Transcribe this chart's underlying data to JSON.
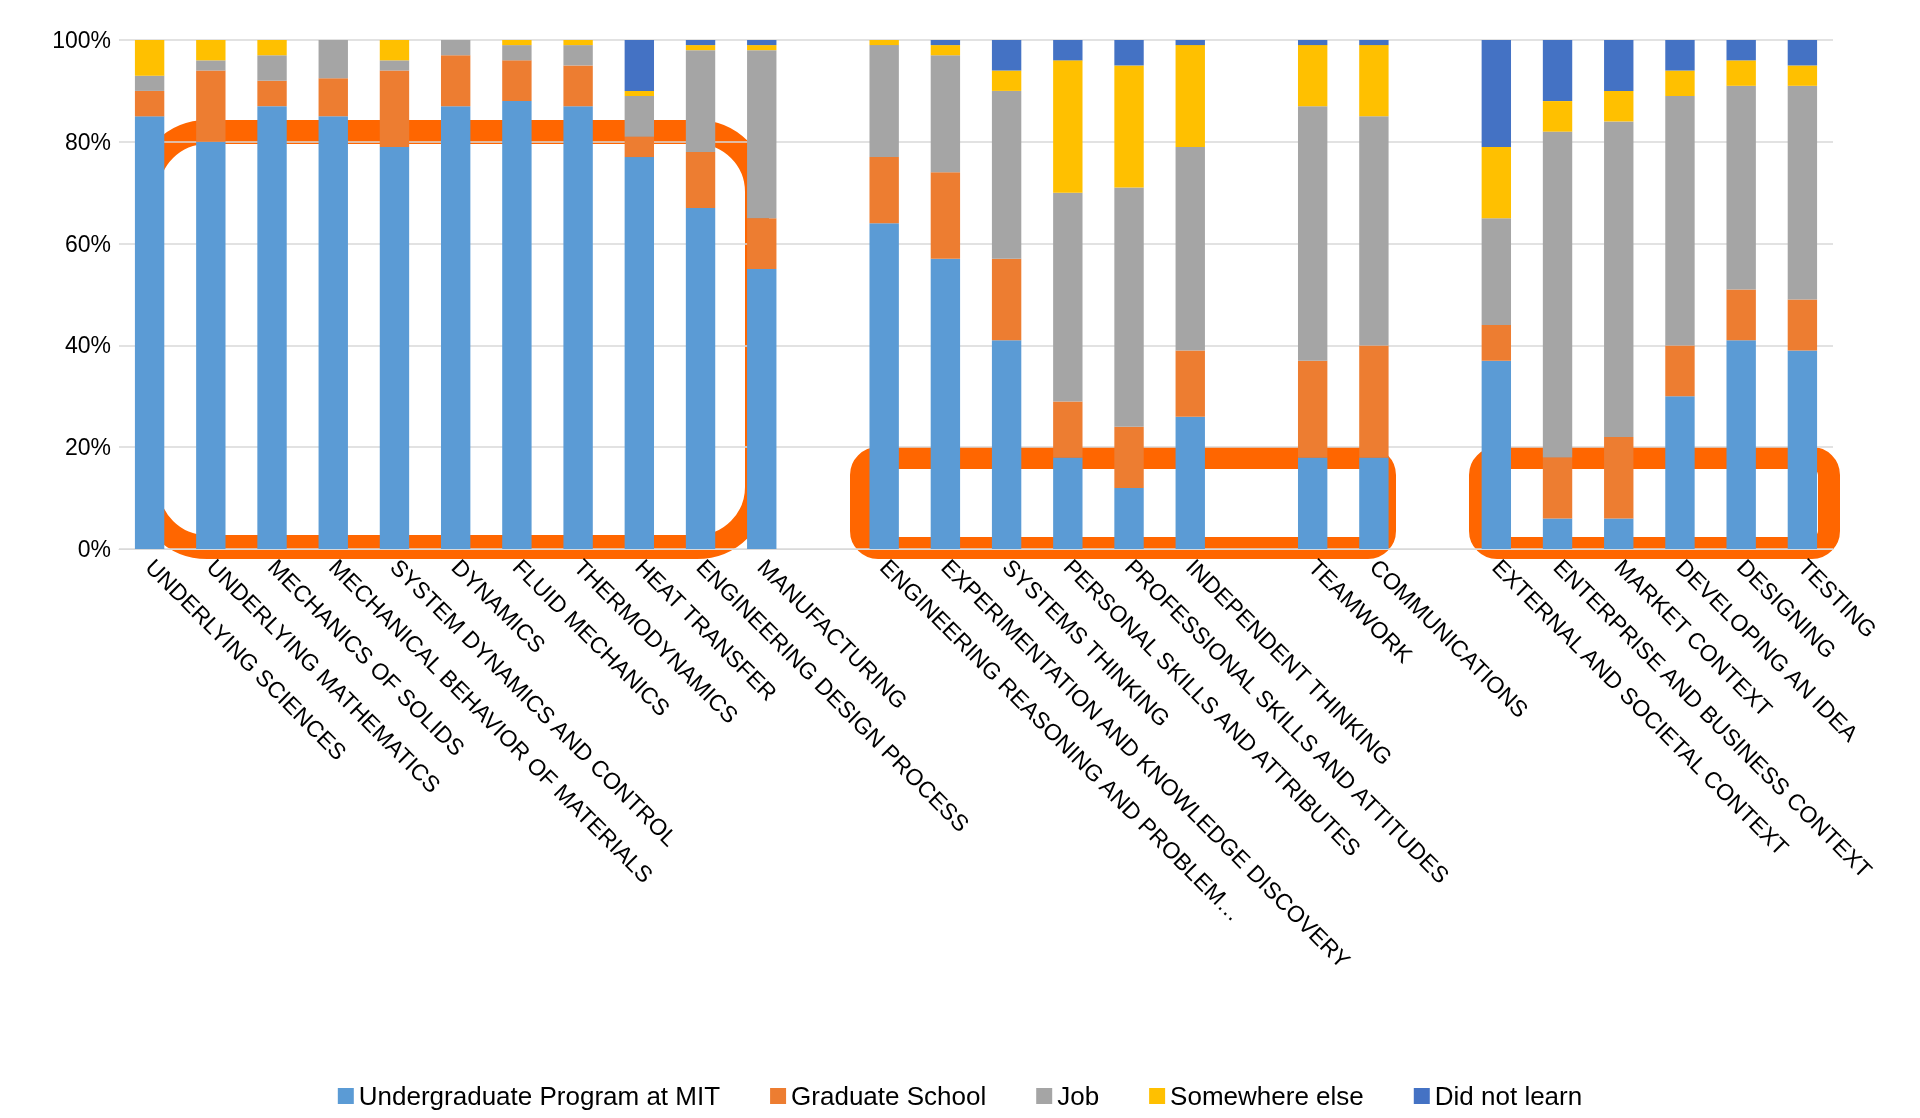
{
  "chart_data": {
    "type": "bar",
    "stacked": true,
    "categories": [
      "UNDERLYING SCIENCES",
      "UNDERLYING MATHEMATICS",
      "MECHANICS OF SOLIDS",
      "MECHANICAL BEHAVIOR OF MATERIALS",
      "SYSTEM DYNAMICS AND CONTROL",
      "DYNAMICS",
      "FLUID MECHANICS",
      "THERMODYNAMICS",
      "HEAT TRANSFER",
      "ENGINEERING DESIGN PROCESS",
      "MANUFACTURING",
      null,
      "ENGINEERING REASONING AND PROBLEM…",
      "EXPERIMENTATION AND KNOWLEDGE DISCOVERY",
      "SYSTEMS THINKING",
      "PERSONAL SKILLS AND ATTRIBUTES",
      "PROFESSIONAL SKILLS AND ATTITUDES",
      "INDEPENDENT THINKING",
      null,
      "TEAMWORK",
      "COMMUNICATIONS",
      null,
      "EXTERNAL AND SOCIETAL CONTEXT",
      "ENTERPRISE AND BUSINESS CONTEXT",
      "MARKET CONTEXT",
      "DEVELOPING AN IDEA",
      "DESIGNING",
      "TESTING"
    ],
    "series": [
      {
        "name": "Undergraduate Program at MIT",
        "color": "#5b9bd5",
        "values": [
          85,
          80,
          87,
          85,
          79,
          87,
          88,
          87,
          77,
          67,
          55,
          null,
          64,
          57,
          41,
          18,
          12,
          26,
          null,
          18,
          18,
          null,
          37,
          6,
          6,
          30,
          41,
          39
        ]
      },
      {
        "name": "Graduate School",
        "color": "#ed7d31",
        "values": [
          5,
          14,
          5,
          7.5,
          15,
          10,
          8,
          8,
          4,
          11,
          10,
          null,
          13,
          17,
          16,
          11,
          12,
          13,
          null,
          19,
          22,
          null,
          7,
          12,
          16,
          10,
          10,
          10
        ]
      },
      {
        "name": "Job",
        "color": "#a5a5a5",
        "values": [
          3,
          2,
          5,
          7.5,
          2,
          3,
          3,
          4,
          8,
          20,
          33,
          null,
          22,
          23,
          33,
          41,
          47,
          40,
          null,
          50,
          45,
          null,
          21,
          64,
          62,
          49,
          40,
          42
        ]
      },
      {
        "name": "Somewhere else",
        "color": "#ffc000",
        "values": [
          7,
          4,
          3,
          0,
          4,
          0,
          1,
          1,
          1,
          1,
          1,
          null,
          1,
          2,
          4,
          26,
          24,
          20,
          null,
          12,
          14,
          null,
          14,
          6,
          6,
          5,
          5,
          4
        ]
      },
      {
        "name": "Did not learn",
        "color": "#4472c4",
        "values": [
          0,
          0,
          0,
          0,
          0,
          0,
          0,
          0,
          10,
          1,
          1,
          null,
          0,
          1,
          6,
          4,
          5,
          1,
          null,
          1,
          1,
          null,
          21,
          12,
          10,
          6,
          4,
          5
        ]
      }
    ],
    "ylim": [
      0,
      100
    ],
    "yticks": [
      {
        "value": 0,
        "label": "0%"
      },
      {
        "value": 20,
        "label": "20%"
      },
      {
        "value": 40,
        "label": "40%"
      },
      {
        "value": 60,
        "label": "60%"
      },
      {
        "value": 80,
        "label": "80%"
      },
      {
        "value": 100,
        "label": "100%"
      }
    ],
    "grid": "y",
    "legend": "bottom"
  }
}
